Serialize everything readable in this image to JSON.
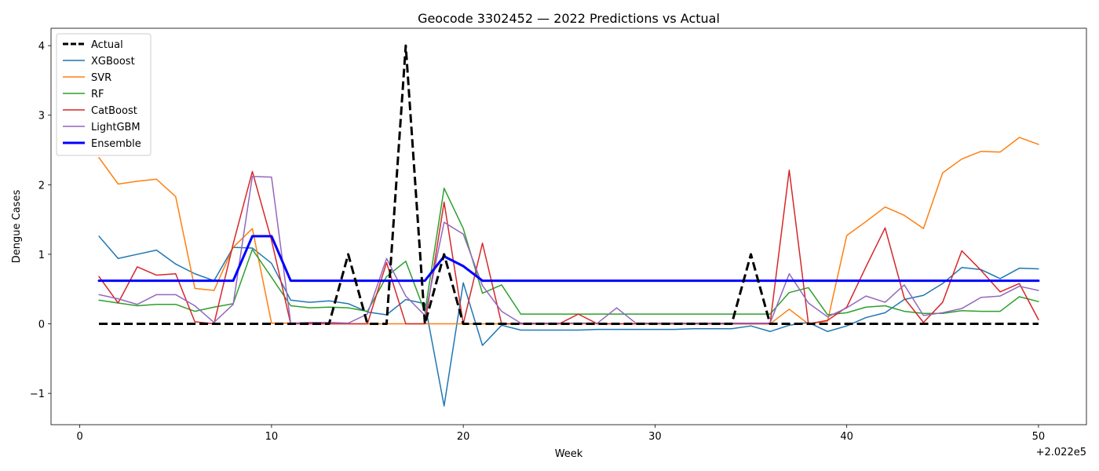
{
  "chart_data": {
    "type": "line",
    "title": "Geocode 3302452 — 2022 Predictions vs Actual",
    "xlabel": "Week",
    "ylabel": "Dengue Cases",
    "x_offset_label": "+2.022e5",
    "xlim": [
      -1.5,
      52.5
    ],
    "ylim": [
      -1.45,
      4.25
    ],
    "x_ticks": [
      0,
      10,
      20,
      30,
      40,
      50
    ],
    "x_tick_labels": [
      "0",
      "10",
      "20",
      "30",
      "40",
      "50"
    ],
    "y_ticks": [
      -1,
      0,
      1,
      2,
      3,
      4
    ],
    "y_tick_labels": [
      "−1",
      "0",
      "1",
      "2",
      "3",
      "4"
    ],
    "grid": false,
    "legend_position": "top-left",
    "x": [
      1,
      2,
      3,
      4,
      5,
      6,
      7,
      8,
      9,
      10,
      11,
      12,
      13,
      14,
      15,
      16,
      17,
      18,
      19,
      20,
      21,
      22,
      23,
      24,
      25,
      26,
      27,
      28,
      29,
      30,
      31,
      32,
      33,
      34,
      35,
      36,
      37,
      38,
      39,
      40,
      41,
      42,
      43,
      44,
      45,
      46,
      47,
      48,
      49,
      50
    ],
    "series": [
      {
        "name": "Actual",
        "color": "#000000",
        "style": "dashed",
        "width": 3,
        "values": [
          0,
          0,
          0,
          0,
          0,
          0,
          0,
          0,
          0,
          0,
          0,
          0,
          0,
          1,
          0,
          0,
          4,
          0,
          1,
          0,
          0,
          0,
          0,
          0,
          0,
          0,
          0,
          0,
          0,
          0,
          0,
          0,
          0,
          0,
          1,
          0,
          0,
          0,
          0,
          0,
          0,
          0,
          0,
          0,
          0,
          0,
          0,
          0,
          0,
          0
        ]
      },
      {
        "name": "XGBoost",
        "color": "#1f77b4",
        "style": "solid",
        "width": 1.5,
        "values": [
          1.26,
          0.94,
          1.0,
          1.06,
          0.86,
          0.72,
          0.62,
          1.1,
          1.09,
          0.87,
          0.34,
          0.31,
          0.33,
          0.29,
          0.17,
          0.13,
          0.35,
          0.29,
          -1.18,
          0.59,
          -0.31,
          -0.02,
          -0.09,
          -0.09,
          -0.09,
          -0.09,
          -0.08,
          -0.08,
          -0.08,
          -0.08,
          -0.08,
          -0.07,
          -0.07,
          -0.07,
          -0.03,
          -0.11,
          -0.02,
          0.02,
          -0.11,
          -0.03,
          0.09,
          0.16,
          0.35,
          0.41,
          0.58,
          0.81,
          0.78,
          0.65,
          0.8,
          0.79
        ]
      },
      {
        "name": "SVR",
        "color": "#ff7f0e",
        "style": "solid",
        "width": 1.5,
        "values": [
          2.39,
          2.01,
          2.05,
          2.08,
          1.83,
          0.51,
          0.48,
          1.1,
          1.37,
          0.01,
          0.01,
          0.01,
          0.0,
          0.0,
          0.0,
          0.0,
          0.0,
          0.0,
          0.0,
          0.0,
          0.0,
          0.0,
          0.0,
          0.0,
          0.0,
          0.0,
          0.0,
          0.0,
          0.0,
          0.0,
          0.0,
          0.0,
          0.0,
          0.0,
          0.0,
          0.0,
          0.21,
          0.0,
          0.04,
          1.27,
          1.47,
          1.68,
          1.56,
          1.37,
          2.17,
          2.37,
          2.48,
          2.47,
          2.68,
          2.58
        ]
      },
      {
        "name": "RF",
        "color": "#2ca02c",
        "style": "solid",
        "width": 1.5,
        "values": [
          0.34,
          0.3,
          0.26,
          0.28,
          0.28,
          0.18,
          0.24,
          0.29,
          1.07,
          0.67,
          0.26,
          0.23,
          0.24,
          0.23,
          0.18,
          0.68,
          0.9,
          0.17,
          1.95,
          1.37,
          0.44,
          0.56,
          0.14,
          0.14,
          0.14,
          0.14,
          0.14,
          0.14,
          0.14,
          0.14,
          0.14,
          0.14,
          0.14,
          0.14,
          0.14,
          0.14,
          0.45,
          0.52,
          0.13,
          0.16,
          0.24,
          0.26,
          0.18,
          0.15,
          0.15,
          0.19,
          0.18,
          0.18,
          0.39,
          0.32
        ]
      },
      {
        "name": "CatBoost",
        "color": "#d62728",
        "style": "solid",
        "width": 1.5,
        "values": [
          0.68,
          0.3,
          0.82,
          0.7,
          0.72,
          0.03,
          0.0,
          1.15,
          2.19,
          1.2,
          0.0,
          0.0,
          0.0,
          0.0,
          0.0,
          0.88,
          0.0,
          0.0,
          1.75,
          0.0,
          1.16,
          0.0,
          0.0,
          0.0,
          0.0,
          0.14,
          0.0,
          0.0,
          0.0,
          0.0,
          0.0,
          0.0,
          0.0,
          0.0,
          0.0,
          0.0,
          2.21,
          0.0,
          0.05,
          0.24,
          0.82,
          1.38,
          0.37,
          0.02,
          0.31,
          1.05,
          0.77,
          0.46,
          0.58,
          0.06
        ]
      },
      {
        "name": "LightGBM",
        "color": "#9467bd",
        "style": "solid",
        "width": 1.5,
        "values": [
          0.42,
          0.36,
          0.28,
          0.42,
          0.42,
          0.26,
          0.02,
          0.28,
          2.12,
          2.11,
          0.01,
          0.02,
          0.02,
          0.01,
          0.14,
          0.94,
          0.4,
          0.12,
          1.46,
          1.29,
          0.55,
          0.18,
          0.01,
          0.01,
          0.01,
          0.01,
          0.01,
          0.23,
          0.01,
          0.01,
          0.01,
          0.01,
          0.01,
          0.01,
          0.01,
          0.01,
          0.72,
          0.3,
          0.1,
          0.23,
          0.4,
          0.31,
          0.56,
          0.12,
          0.16,
          0.22,
          0.38,
          0.4,
          0.54,
          0.48
        ]
      },
      {
        "name": "Ensemble",
        "color": "#0000ff",
        "style": "solid",
        "width": 3,
        "values": [
          0.62,
          0.62,
          0.62,
          0.62,
          0.62,
          0.62,
          0.62,
          0.62,
          1.26,
          1.26,
          0.62,
          0.62,
          0.62,
          0.62,
          0.62,
          0.62,
          0.62,
          0.62,
          0.97,
          0.83,
          0.62,
          0.62,
          0.62,
          0.62,
          0.62,
          0.62,
          0.62,
          0.62,
          0.62,
          0.62,
          0.62,
          0.62,
          0.62,
          0.62,
          0.62,
          0.62,
          0.62,
          0.62,
          0.62,
          0.62,
          0.62,
          0.62,
          0.62,
          0.62,
          0.62,
          0.62,
          0.62,
          0.62,
          0.62,
          0.62
        ]
      }
    ]
  }
}
